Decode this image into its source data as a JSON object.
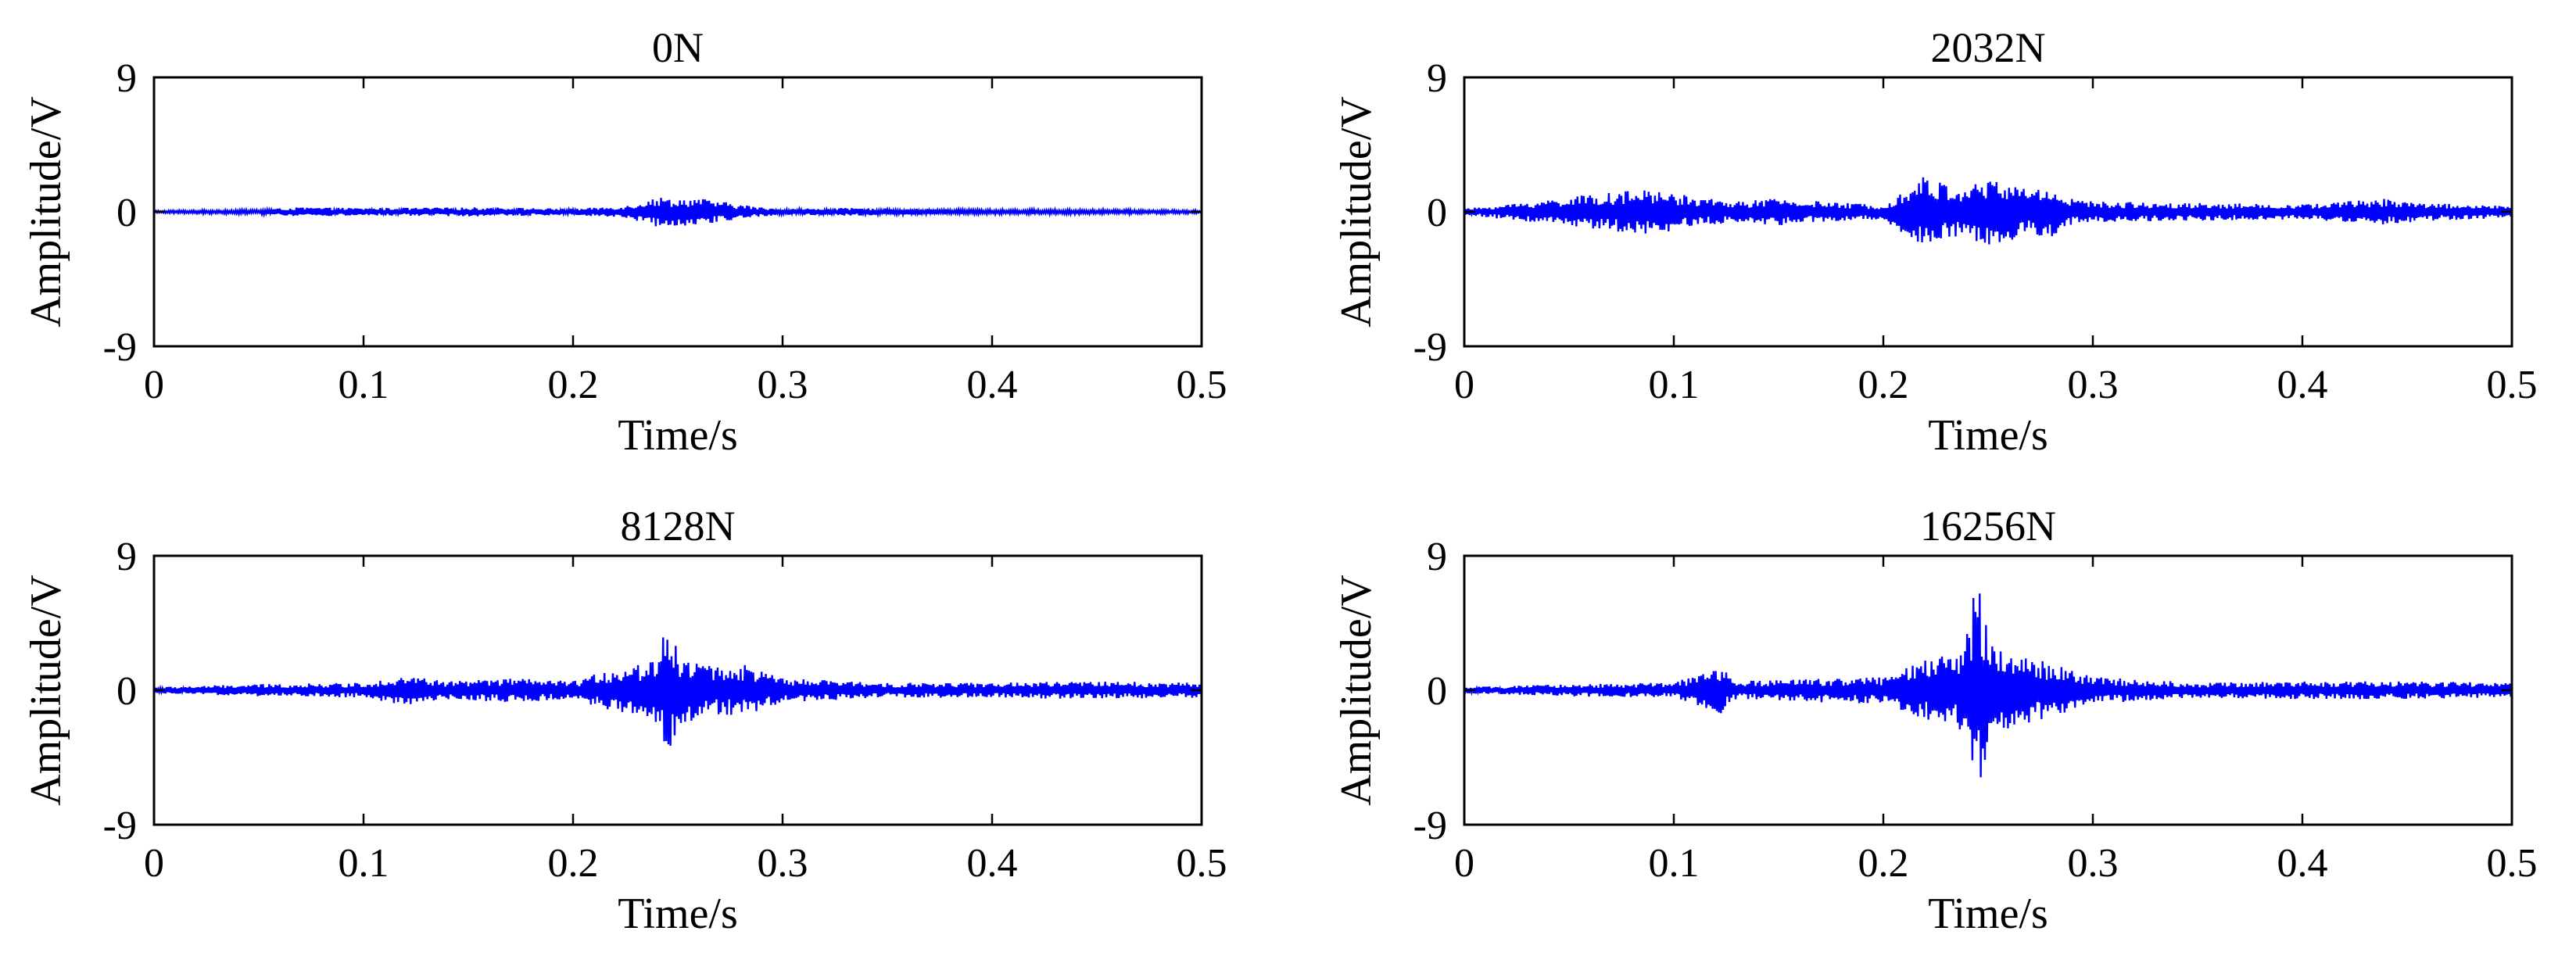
{
  "figure": {
    "colors": {
      "signal": "#0000ff",
      "axes": "#000000",
      "background": "#ffffff"
    }
  },
  "chart_data": [
    {
      "type": "line",
      "title": "0N",
      "xlabel": "Time/s",
      "ylabel": "Amplitude/V",
      "xlim": [
        0,
        0.5
      ],
      "ylim": [
        -9,
        9
      ],
      "xticks": [
        "0",
        "0.1",
        "0.2",
        "0.3",
        "0.4",
        "0.5"
      ],
      "yticks": [
        "9",
        "0",
        "-9"
      ],
      "grid": false,
      "sample_interval_s": 0.0005,
      "envelope": {
        "t": [
          0.0,
          0.05,
          0.07,
          0.1,
          0.16,
          0.2,
          0.225,
          0.235,
          0.24,
          0.25,
          0.26,
          0.265,
          0.28,
          0.29,
          0.3,
          0.33,
          0.36,
          0.4,
          0.45,
          0.5
        ],
        "peak": [
          0.08,
          0.15,
          0.3,
          0.25,
          0.3,
          0.2,
          0.4,
          0.8,
          1.0,
          0.9,
          0.95,
          0.8,
          0.5,
          0.3,
          0.2,
          0.25,
          0.2,
          0.15,
          0.15,
          0.1
        ]
      }
    },
    {
      "type": "line",
      "title": "2032N",
      "xlabel": "Time/s",
      "ylabel": "Amplitude/V",
      "xlim": [
        0,
        0.5
      ],
      "ylim": [
        -9,
        9
      ],
      "xticks": [
        "0",
        "0.1",
        "0.2",
        "0.3",
        "0.4",
        "0.5"
      ],
      "yticks": [
        "9",
        "0",
        "-9"
      ],
      "grid": false,
      "sample_interval_s": 0.0005,
      "envelope": {
        "t": [
          0.0,
          0.02,
          0.05,
          0.07,
          0.09,
          0.11,
          0.13,
          0.15,
          0.18,
          0.2,
          0.21,
          0.22,
          0.23,
          0.24,
          0.25,
          0.26,
          0.27,
          0.28,
          0.29,
          0.3,
          0.35,
          0.4,
          0.44,
          0.46,
          0.5
        ],
        "peak": [
          0.2,
          0.5,
          1.0,
          1.3,
          1.5,
          1.0,
          0.7,
          0.9,
          0.6,
          0.5,
          1.5,
          2.5,
          1.8,
          1.8,
          2.2,
          2.0,
          1.6,
          1.7,
          0.9,
          0.7,
          0.6,
          0.5,
          0.9,
          0.6,
          0.4
        ]
      }
    },
    {
      "type": "line",
      "title": "8128N",
      "xlabel": "Time/s",
      "ylabel": "Amplitude/V",
      "xlim": [
        0,
        0.5
      ],
      "ylim": [
        -9,
        9
      ],
      "xticks": [
        "0",
        "0.1",
        "0.2",
        "0.3",
        "0.4",
        "0.5"
      ],
      "yticks": [
        "9",
        "0",
        "-9"
      ],
      "grid": false,
      "sample_interval_s": 0.0005,
      "envelope": {
        "t": [
          0.0,
          0.05,
          0.1,
          0.12,
          0.14,
          0.17,
          0.2,
          0.22,
          0.235,
          0.24,
          0.245,
          0.25,
          0.26,
          0.27,
          0.28,
          0.3,
          0.35,
          0.4,
          0.45,
          0.5
        ],
        "peak": [
          0.2,
          0.4,
          0.5,
          1.0,
          0.6,
          0.8,
          0.6,
          1.5,
          1.8,
          2.5,
          5.0,
          2.5,
          2.0,
          1.6,
          1.8,
          0.8,
          0.5,
          0.5,
          0.6,
          0.5
        ]
      }
    },
    {
      "type": "line",
      "title": "16256N",
      "xlabel": "Time/s",
      "ylabel": "Amplitude/V",
      "xlim": [
        0,
        0.5
      ],
      "ylim": [
        -9,
        9
      ],
      "xticks": [
        "0",
        "0.1",
        "0.2",
        "0.3",
        "0.4",
        "0.5"
      ],
      "yticks": [
        "9",
        "0",
        "-9"
      ],
      "grid": false,
      "sample_interval_s": 0.0005,
      "envelope": {
        "t": [
          0.0,
          0.05,
          0.1,
          0.122,
          0.13,
          0.17,
          0.2,
          0.22,
          0.235,
          0.24,
          0.245,
          0.25,
          0.26,
          0.27,
          0.28,
          0.3,
          0.35,
          0.4,
          0.45,
          0.5
        ],
        "peak": [
          0.2,
          0.4,
          0.5,
          1.6,
          0.6,
          0.8,
          0.9,
          2.0,
          2.5,
          4.0,
          8.0,
          4.0,
          2.5,
          2.2,
          1.8,
          0.9,
          0.5,
          0.6,
          0.6,
          0.5
        ]
      }
    }
  ]
}
